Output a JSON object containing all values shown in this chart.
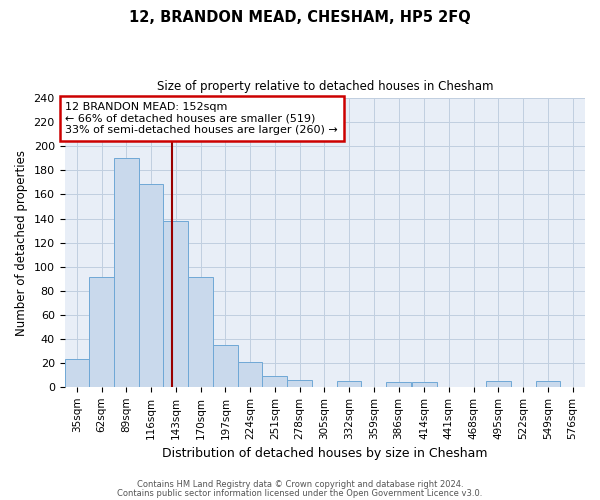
{
  "title": "12, BRANDON MEAD, CHESHAM, HP5 2FQ",
  "subtitle": "Size of property relative to detached houses in Chesham",
  "xlabel": "Distribution of detached houses by size in Chesham",
  "ylabel": "Number of detached properties",
  "bin_labels": [
    "35sqm",
    "62sqm",
    "89sqm",
    "116sqm",
    "143sqm",
    "170sqm",
    "197sqm",
    "224sqm",
    "251sqm",
    "278sqm",
    "305sqm",
    "332sqm",
    "359sqm",
    "386sqm",
    "414sqm",
    "441sqm",
    "468sqm",
    "495sqm",
    "522sqm",
    "549sqm",
    "576sqm"
  ],
  "bin_left_edges": [
    35,
    62,
    89,
    116,
    143,
    170,
    197,
    224,
    251,
    278,
    305,
    332,
    359,
    386,
    414,
    441,
    468,
    495,
    522,
    549,
    576
  ],
  "bin_width": 27,
  "bar_heights": [
    23,
    91,
    190,
    169,
    138,
    91,
    35,
    21,
    9,
    6,
    0,
    5,
    0,
    4,
    4,
    0,
    0,
    5,
    0,
    5,
    0
  ],
  "bar_color": "#c9d9ec",
  "bar_edgecolor": "#6fa8d6",
  "grid_color": "#c0cfe0",
  "background_color": "#e8eef7",
  "property_value": 152,
  "vline_color": "#990000",
  "annotation_line1": "12 BRANDON MEAD: 152sqm",
  "annotation_line2": "← 66% of detached houses are smaller (519)",
  "annotation_line3": "33% of semi-detached houses are larger (260) →",
  "annotation_box_edgecolor": "#cc0000",
  "annotation_box_facecolor": "#ffffff",
  "ylim": [
    0,
    240
  ],
  "yticks": [
    0,
    20,
    40,
    60,
    80,
    100,
    120,
    140,
    160,
    180,
    200,
    220,
    240
  ],
  "footer1": "Contains HM Land Registry data © Crown copyright and database right 2024.",
  "footer2": "Contains public sector information licensed under the Open Government Licence v3.0."
}
